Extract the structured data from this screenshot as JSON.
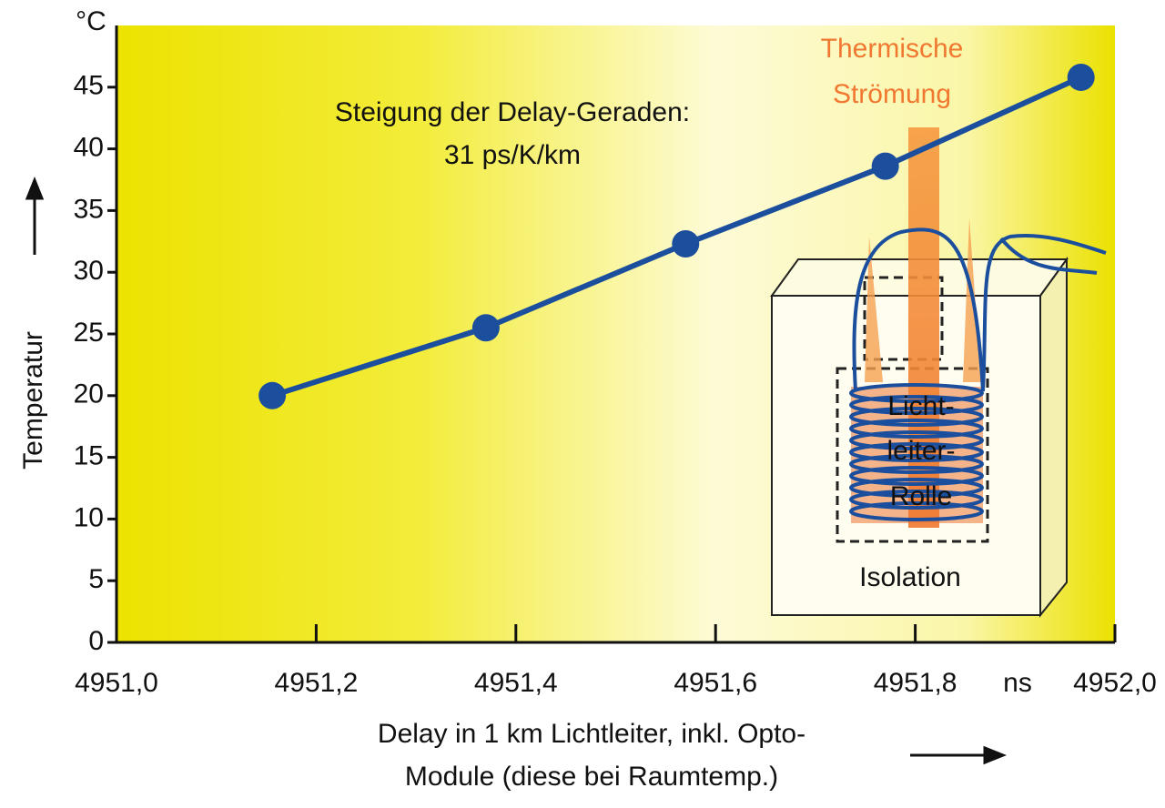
{
  "chart_data": {
    "type": "line",
    "y_label": "Temperatur",
    "y_unit": "°C",
    "x_label": [
      "Delay in 1 km Lichtleiter, inkl. Opto-",
      "Module (diese bei Raumtemp.)"
    ],
    "x_unit": "ns",
    "x": [
      4951.156,
      4951.37,
      4951.57,
      4951.77,
      4951.966
    ],
    "values": [
      20,
      25.5,
      32.3,
      38.6,
      45.8
    ],
    "color": "#1b4f9e",
    "xlim": [
      4951.0,
      4952.0
    ],
    "xticks": [
      {
        "value": 4951.0,
        "label": "4951,0"
      },
      {
        "value": 4951.2,
        "label": "4951,2"
      },
      {
        "value": 4951.4,
        "label": "4951,4"
      },
      {
        "value": 4951.6,
        "label": "4951,6"
      },
      {
        "value": 4951.8,
        "label": "4951,8"
      },
      {
        "value": 4952.0,
        "label": "4952,0"
      }
    ],
    "ylim": [
      0,
      50
    ],
    "yticks": [
      0,
      5,
      10,
      15,
      20,
      25,
      30,
      35,
      40,
      45
    ],
    "annotations": [
      "Steigung der Delay-Geraden:",
      "31 ps/K/km",
      "Thermische",
      "Strömung",
      "Licht-",
      "leiter-",
      "Rolle",
      "Isolation"
    ]
  }
}
